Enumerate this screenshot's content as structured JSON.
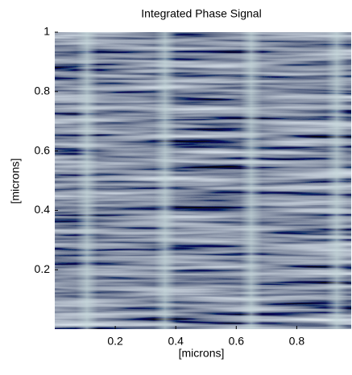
{
  "chart_data": {
    "type": "image",
    "title": "Integrated Phase Signal",
    "xlabel": "[microns]",
    "ylabel": "[microns]",
    "xlim": [
      0,
      0.98
    ],
    "ylim": [
      0,
      1
    ],
    "xticks": [
      0.2,
      0.4,
      0.6,
      0.8
    ],
    "yticks": [
      0.2,
      0.4,
      0.6,
      0.8,
      1
    ]
  }
}
